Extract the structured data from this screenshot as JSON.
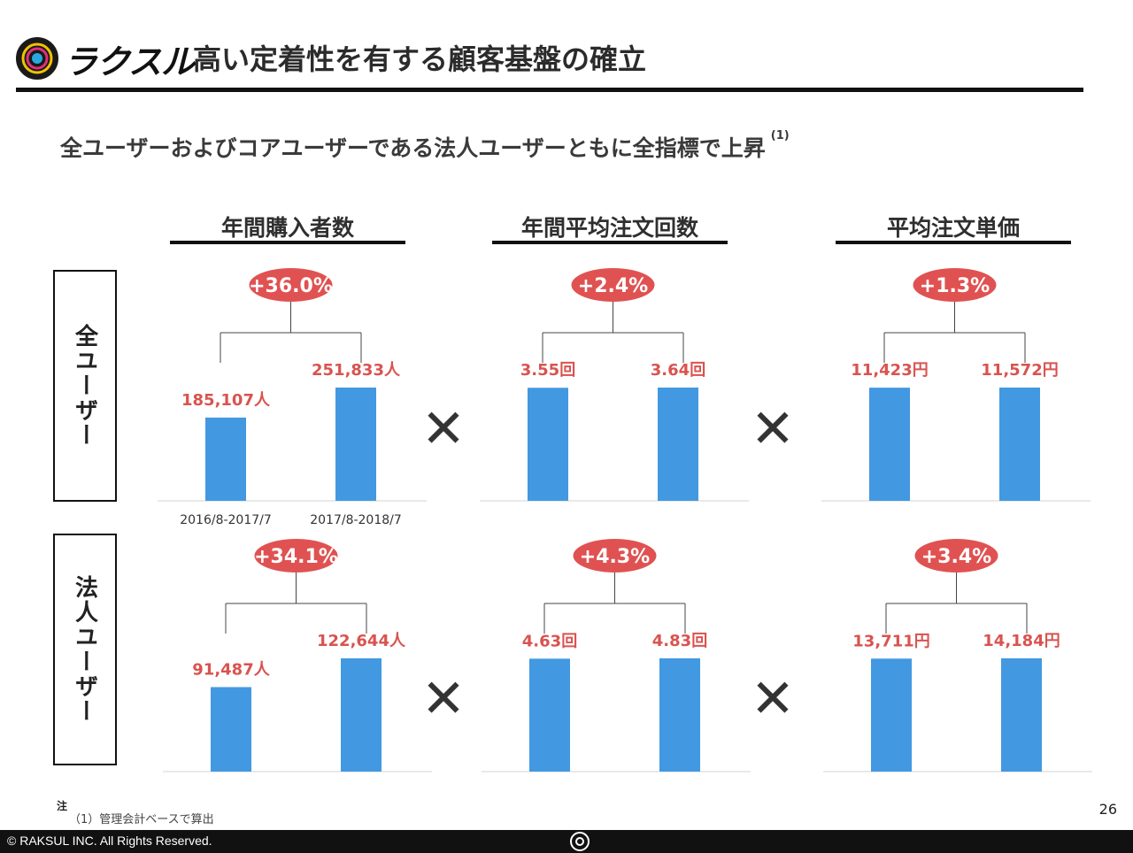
{
  "header": {
    "brand": "ラクスル",
    "title": "高い定着性を有する顧客基盤の確立"
  },
  "subtitle": {
    "text": "全ユーザーおよびコアユーザーである法人ユーザーともに全指標で上昇",
    "note_ref": "(1)"
  },
  "columns": [
    "年間購入者数",
    "年間平均注文回数",
    "平均注文単価"
  ],
  "rows": [
    "全ユーザー",
    "法人ユーザー"
  ],
  "operator": "✕",
  "colors": {
    "bar": "#4299e1",
    "label": "#d9534f",
    "badge": "#e05252",
    "badge_text": "#ffffff"
  },
  "chart_data": [
    {
      "type": "bar",
      "row": "全ユーザー",
      "metric": "年間購入者数",
      "categories": [
        "2016/8-2017/7",
        "2017/8-2018/7"
      ],
      "values": [
        185107,
        251833
      ],
      "data_labels": [
        "185,107人",
        "251,833人"
      ],
      "growth": "+36.0%"
    },
    {
      "type": "bar",
      "row": "全ユーザー",
      "metric": "年間平均注文回数",
      "categories": [
        "",
        ""
      ],
      "values": [
        3.55,
        3.64
      ],
      "data_labels": [
        "3.55回",
        "3.64回"
      ],
      "growth": "+2.4%"
    },
    {
      "type": "bar",
      "row": "全ユーザー",
      "metric": "平均注文単価",
      "categories": [
        "",
        ""
      ],
      "values": [
        11423,
        11572
      ],
      "data_labels": [
        "11,423円",
        "11,572円"
      ],
      "growth": "+1.3%"
    },
    {
      "type": "bar",
      "row": "法人ユーザー",
      "metric": "年間購入者数",
      "categories": [
        "",
        ""
      ],
      "values": [
        91487,
        122644
      ],
      "data_labels": [
        "91,487人",
        "122,644人"
      ],
      "growth": "+34.1%"
    },
    {
      "type": "bar",
      "row": "法人ユーザー",
      "metric": "年間平均注文回数",
      "categories": [
        "",
        ""
      ],
      "values": [
        4.63,
        4.83
      ],
      "data_labels": [
        "4.63回",
        "4.83回"
      ],
      "growth": "+4.3%"
    },
    {
      "type": "bar",
      "row": "法人ユーザー",
      "metric": "平均注文単価",
      "categories": [
        "",
        ""
      ],
      "values": [
        13711,
        14184
      ],
      "data_labels": [
        "13,711円",
        "14,184円"
      ],
      "growth": "+3.4%"
    }
  ],
  "note": {
    "head": "注",
    "body": "（1）管理会計ベースで算出"
  },
  "page_number": "26",
  "footer": {
    "copyright": "© RAKSUL INC. All Rights Reserved."
  }
}
